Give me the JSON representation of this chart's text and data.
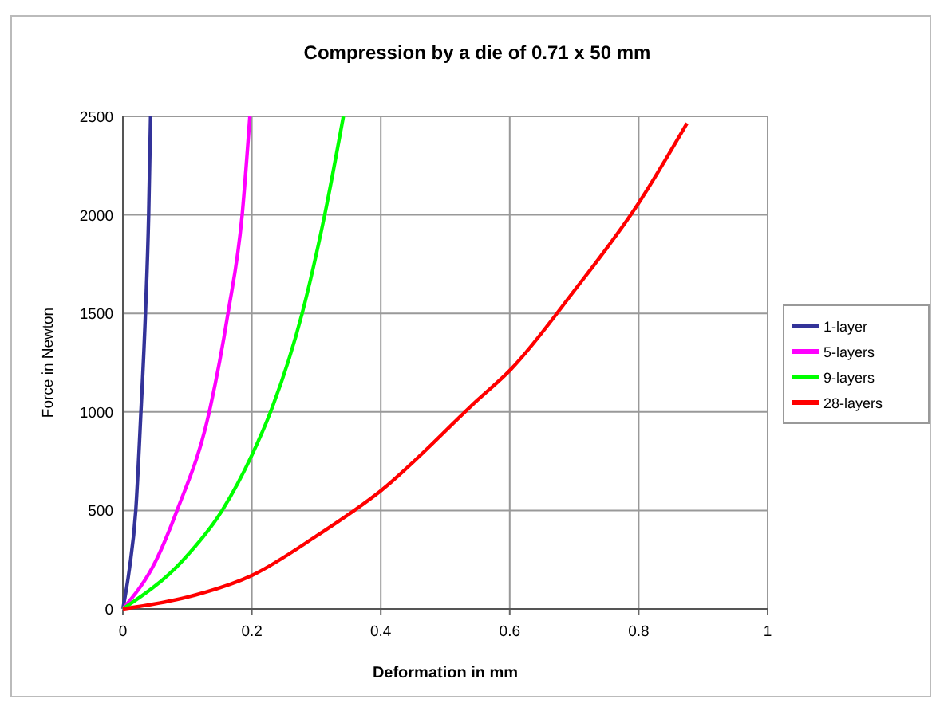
{
  "chart_data": {
    "type": "line",
    "title": "Compression by a die of 0.71 x 50 mm",
    "xlabel": "Deformation in mm",
    "ylabel": "Force in Newton",
    "xlim": [
      0,
      1
    ],
    "xticks": [
      0,
      0.2,
      0.4,
      0.6,
      0.8,
      1
    ],
    "ylim": [
      0,
      2500
    ],
    "yticks": [
      0,
      500,
      1000,
      1500,
      2000,
      2500
    ],
    "grid": true,
    "legend": "right",
    "marker": "none",
    "line_style": "solid",
    "series": [
      {
        "name": "1-layer",
        "color": "#333399",
        "x": [
          0,
          0.01,
          0.02,
          0.028,
          0.035,
          0.04,
          0.043
        ],
        "values": [
          0,
          200,
          500,
          1000,
          1500,
          2000,
          2500
        ]
      },
      {
        "name": "5-layers",
        "color": "#ff00ff",
        "x": [
          0,
          0.052,
          0.084,
          0.134,
          0.163,
          0.185,
          0.197
        ],
        "values": [
          0,
          250,
          500,
          1000,
          1500,
          2000,
          2500
        ]
      },
      {
        "name": "9-layers",
        "color": "#00ff00",
        "x": [
          0,
          0.094,
          0.154,
          0.2,
          0.229,
          0.278,
          0.313,
          0.342
        ],
        "values": [
          0,
          250,
          500,
          780,
          1000,
          1500,
          2000,
          2500
        ]
      },
      {
        "name": "28-layers",
        "color": "#ff0000",
        "x": [
          0,
          0.1,
          0.2,
          0.3,
          0.4,
          0.55,
          0.6,
          0.7,
          0.8,
          0.875
        ],
        "values": [
          0,
          60,
          170,
          370,
          600,
          1060,
          1210,
          1615,
          2060,
          2465
        ]
      }
    ]
  }
}
